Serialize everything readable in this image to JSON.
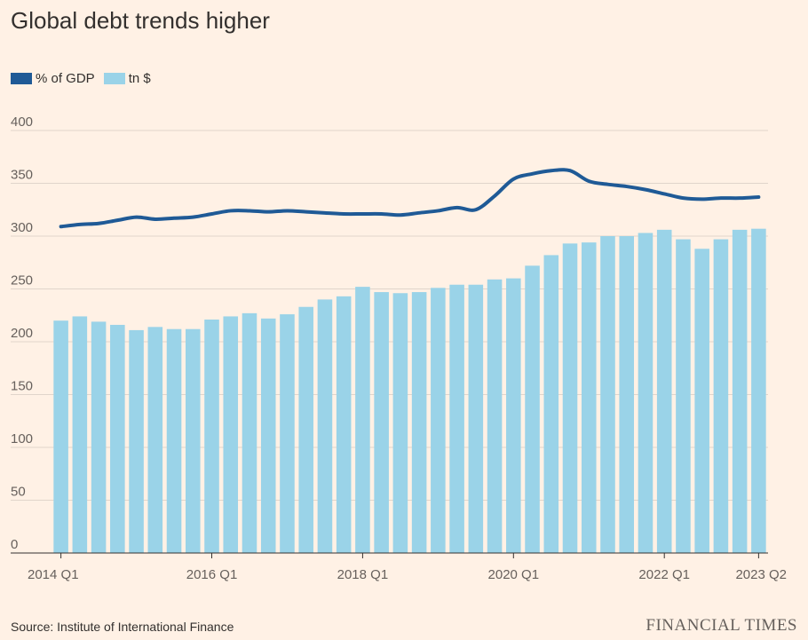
{
  "title": "Global debt trends higher",
  "legend": {
    "gdp_label": "% of GDP",
    "tn_label": "tn $"
  },
  "colors": {
    "background": "#fff1e5",
    "line": "#1f5a96",
    "bars": "#9ad3e8",
    "grid": "#e0d5cb",
    "axis": "#33302e"
  },
  "source": "Source: Institute of International Finance",
  "brand": "FINANCIAL TIMES",
  "chart_data": {
    "type": "bar",
    "title": "Global debt trends higher",
    "xlabel": "",
    "ylabel": "",
    "ylim": [
      0,
      400
    ],
    "yticks": [
      0,
      50,
      100,
      150,
      200,
      250,
      300,
      350,
      400
    ],
    "grid": true,
    "legend_placement": "top-left",
    "x_tick_labels": [
      {
        "index": 0,
        "label": "2014 Q1"
      },
      {
        "index": 8,
        "label": "2016 Q1"
      },
      {
        "index": 16,
        "label": "2018 Q1"
      },
      {
        "index": 24,
        "label": "2020 Q1"
      },
      {
        "index": 32,
        "label": "2022 Q1"
      },
      {
        "index": 37,
        "label": "2023 Q2"
      }
    ],
    "categories": [
      "2014 Q1",
      "2014 Q2",
      "2014 Q3",
      "2014 Q4",
      "2015 Q1",
      "2015 Q2",
      "2015 Q3",
      "2015 Q4",
      "2016 Q1",
      "2016 Q2",
      "2016 Q3",
      "2016 Q4",
      "2017 Q1",
      "2017 Q2",
      "2017 Q3",
      "2017 Q4",
      "2018 Q1",
      "2018 Q2",
      "2018 Q3",
      "2018 Q4",
      "2019 Q1",
      "2019 Q2",
      "2019 Q3",
      "2019 Q4",
      "2020 Q1",
      "2020 Q2",
      "2020 Q3",
      "2020 Q4",
      "2021 Q1",
      "2021 Q2",
      "2021 Q3",
      "2021 Q4",
      "2022 Q1",
      "2022 Q2",
      "2022 Q3",
      "2022 Q4",
      "2023 Q1",
      "2023 Q2"
    ],
    "series": [
      {
        "name": "tn $",
        "type": "bar",
        "values": [
          220,
          224,
          219,
          216,
          211,
          214,
          212,
          212,
          221,
          224,
          227,
          222,
          226,
          233,
          240,
          243,
          252,
          247,
          246,
          247,
          251,
          254,
          254,
          259,
          260,
          272,
          282,
          293,
          294,
          300,
          300,
          303,
          306,
          297,
          288,
          297,
          306,
          307
        ]
      },
      {
        "name": "% of GDP",
        "type": "line",
        "values": [
          309,
          311,
          312,
          315,
          318,
          316,
          317,
          318,
          321,
          324,
          324,
          323,
          324,
          323,
          322,
          321,
          321,
          321,
          320,
          322,
          324,
          327,
          325,
          338,
          354,
          359,
          362,
          362,
          352,
          349,
          347,
          344,
          340,
          336,
          335,
          336,
          336,
          337
        ]
      }
    ]
  }
}
